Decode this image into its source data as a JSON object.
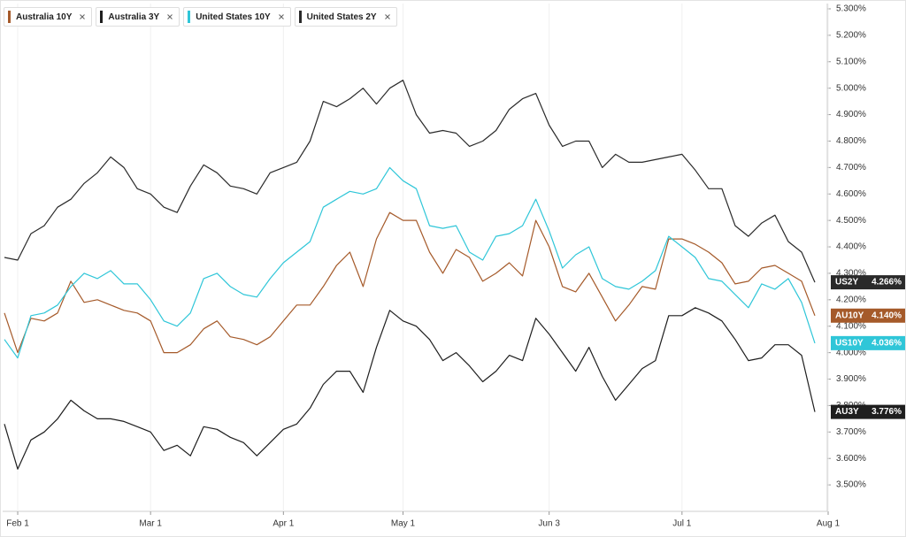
{
  "chart_data": {
    "type": "line",
    "categories": [
      null,
      "Feb 1",
      null,
      null,
      null,
      null,
      null,
      null,
      null,
      null,
      null,
      "Mar 1",
      null,
      null,
      null,
      null,
      null,
      null,
      null,
      null,
      null,
      "Apr 1",
      null,
      null,
      null,
      null,
      null,
      null,
      null,
      null,
      "May 1",
      null,
      null,
      null,
      null,
      null,
      null,
      null,
      null,
      null,
      null,
      "Jun 3",
      null,
      null,
      null,
      null,
      null,
      null,
      null,
      null,
      null,
      "Jul 1",
      null,
      null,
      null,
      null,
      null,
      null,
      null,
      null,
      null,
      null,
      "Aug 1"
    ],
    "series": [
      {
        "name": "Australia 10Y",
        "tag": "AU10Y",
        "color": "#a55a2a",
        "values": [
          4.15,
          4.0,
          4.13,
          4.12,
          4.15,
          4.27,
          4.19,
          4.2,
          4.18,
          4.16,
          4.15,
          4.12,
          4.0,
          4.0,
          4.03,
          4.09,
          4.12,
          4.06,
          4.05,
          4.03,
          4.06,
          4.12,
          4.18,
          4.18,
          4.25,
          4.33,
          4.38,
          4.25,
          4.43,
          4.53,
          4.5,
          4.5,
          4.38,
          4.3,
          4.39,
          4.36,
          4.27,
          4.3,
          4.34,
          4.29,
          4.5,
          4.4,
          4.25,
          4.23,
          4.3,
          4.21,
          4.12,
          4.18,
          4.25,
          4.24,
          4.43,
          4.43,
          4.41,
          4.38,
          4.34,
          4.26,
          4.27,
          4.32,
          4.33,
          4.3,
          4.27,
          4.14,
          null
        ],
        "value_labels": [
          null,
          null,
          null,
          null,
          null,
          null,
          null,
          null,
          null,
          null,
          null,
          null,
          null,
          null,
          null,
          null,
          null,
          null,
          null,
          null,
          null,
          null,
          null,
          null,
          null,
          null,
          null,
          null,
          null,
          null,
          null,
          null,
          null,
          null,
          null,
          null,
          null,
          null,
          null,
          null,
          null,
          null,
          null,
          null,
          null,
          null,
          null,
          null,
          null,
          null,
          null,
          null,
          null,
          null,
          null,
          null,
          null,
          null,
          null,
          null,
          null,
          "4.140%",
          null
        ]
      },
      {
        "name": "Australia 3Y",
        "tag": "AU3Y",
        "color": "#1e1e1e",
        "values": [
          3.73,
          3.56,
          3.67,
          3.7,
          3.75,
          3.82,
          3.78,
          3.75,
          3.75,
          3.74,
          3.72,
          3.7,
          3.63,
          3.65,
          3.61,
          3.72,
          3.71,
          3.68,
          3.66,
          3.61,
          3.66,
          3.71,
          3.73,
          3.79,
          3.88,
          3.93,
          3.93,
          3.85,
          4.02,
          4.16,
          4.12,
          4.1,
          4.05,
          3.97,
          4.0,
          3.95,
          3.89,
          3.93,
          3.99,
          3.97,
          4.13,
          4.07,
          4.0,
          3.93,
          4.02,
          3.91,
          3.82,
          3.88,
          3.94,
          3.97,
          4.14,
          4.14,
          4.17,
          4.15,
          4.12,
          4.05,
          3.97,
          3.98,
          4.03,
          4.03,
          3.99,
          3.776,
          null
        ],
        "value_labels": [
          null,
          null,
          null,
          null,
          null,
          null,
          null,
          null,
          null,
          null,
          null,
          null,
          null,
          null,
          null,
          null,
          null,
          null,
          null,
          null,
          null,
          null,
          null,
          null,
          null,
          null,
          null,
          null,
          null,
          null,
          null,
          null,
          null,
          null,
          null,
          null,
          null,
          null,
          null,
          null,
          null,
          null,
          null,
          null,
          null,
          null,
          null,
          null,
          null,
          null,
          null,
          null,
          null,
          null,
          null,
          null,
          null,
          null,
          null,
          null,
          null,
          "3.776%",
          null
        ]
      },
      {
        "name": "United States 10Y",
        "tag": "US10Y",
        "color": "#2fc6d8",
        "values": [
          4.05,
          3.98,
          4.14,
          4.15,
          4.18,
          4.25,
          4.3,
          4.28,
          4.31,
          4.26,
          4.26,
          4.2,
          4.12,
          4.1,
          4.15,
          4.28,
          4.3,
          4.25,
          4.22,
          4.21,
          4.28,
          4.34,
          4.38,
          4.42,
          4.55,
          4.58,
          4.61,
          4.6,
          4.62,
          4.7,
          4.65,
          4.62,
          4.48,
          4.47,
          4.48,
          4.38,
          4.35,
          4.44,
          4.45,
          4.48,
          4.58,
          4.46,
          4.32,
          4.37,
          4.4,
          4.28,
          4.25,
          4.24,
          4.27,
          4.31,
          4.44,
          4.4,
          4.36,
          4.28,
          4.27,
          4.22,
          4.17,
          4.26,
          4.24,
          4.28,
          4.19,
          4.036,
          null
        ],
        "value_labels": [
          null,
          null,
          null,
          null,
          null,
          null,
          null,
          null,
          null,
          null,
          null,
          null,
          null,
          null,
          null,
          null,
          null,
          null,
          null,
          null,
          null,
          null,
          null,
          null,
          null,
          null,
          null,
          null,
          null,
          null,
          null,
          null,
          null,
          null,
          null,
          null,
          null,
          null,
          null,
          null,
          null,
          null,
          null,
          null,
          null,
          null,
          null,
          null,
          null,
          null,
          null,
          null,
          null,
          null,
          null,
          null,
          null,
          null,
          null,
          null,
          null,
          "4.036%",
          null
        ]
      },
      {
        "name": "United States 2Y",
        "tag": "US2Y",
        "color": "#2a2a2a",
        "values": [
          4.36,
          4.35,
          4.45,
          4.48,
          4.55,
          4.58,
          4.64,
          4.68,
          4.74,
          4.7,
          4.62,
          4.6,
          4.55,
          4.53,
          4.63,
          4.71,
          4.68,
          4.63,
          4.62,
          4.6,
          4.68,
          4.7,
          4.72,
          4.8,
          4.95,
          4.93,
          4.96,
          5.0,
          4.94,
          5.0,
          5.03,
          4.9,
          4.83,
          4.84,
          4.83,
          4.78,
          4.8,
          4.84,
          4.92,
          4.96,
          4.98,
          4.86,
          4.78,
          4.8,
          4.8,
          4.7,
          4.75,
          4.72,
          4.72,
          4.73,
          4.74,
          4.75,
          4.69,
          4.62,
          4.62,
          4.48,
          4.44,
          4.49,
          4.52,
          4.42,
          4.38,
          4.266,
          null
        ],
        "value_labels": [
          null,
          null,
          null,
          null,
          null,
          null,
          null,
          null,
          null,
          null,
          null,
          null,
          null,
          null,
          null,
          null,
          null,
          null,
          null,
          null,
          null,
          null,
          null,
          null,
          null,
          null,
          null,
          null,
          null,
          null,
          null,
          null,
          null,
          null,
          null,
          null,
          null,
          null,
          null,
          null,
          null,
          null,
          null,
          null,
          null,
          null,
          null,
          null,
          null,
          null,
          null,
          null,
          null,
          null,
          null,
          null,
          null,
          null,
          null,
          null,
          null,
          "4.266%",
          null
        ]
      }
    ],
    "ylim": [
      3.4,
      5.32
    ],
    "yticks": [
      {
        "value": 3.5,
        "label": "3.500%"
      },
      {
        "value": 3.6,
        "label": "3.600%"
      },
      {
        "value": 3.7,
        "label": "3.700%"
      },
      {
        "value": 3.8,
        "label": "3.800%"
      },
      {
        "value": 3.9,
        "label": "3.900%"
      },
      {
        "value": 4.0,
        "label": "4.000%"
      },
      {
        "value": 4.1,
        "label": "4.100%"
      },
      {
        "value": 4.2,
        "label": "4.200%"
      },
      {
        "value": 4.3,
        "label": "4.300%"
      },
      {
        "value": 4.4,
        "label": "4.400%"
      },
      {
        "value": 4.5,
        "label": "4.500%"
      },
      {
        "value": 4.6,
        "label": "4.600%"
      },
      {
        "value": 4.7,
        "label": "4.700%"
      },
      {
        "value": 4.8,
        "label": "4.800%"
      },
      {
        "value": 4.9,
        "label": "4.900%"
      },
      {
        "value": 5.0,
        "label": "5.000%"
      },
      {
        "value": 5.1,
        "label": "5.100%"
      },
      {
        "value": 5.2,
        "label": "5.200%"
      },
      {
        "value": 5.3,
        "label": "5.300%"
      }
    ],
    "y_axis_side": "right",
    "x_grid": true,
    "y_grid": false
  }
}
